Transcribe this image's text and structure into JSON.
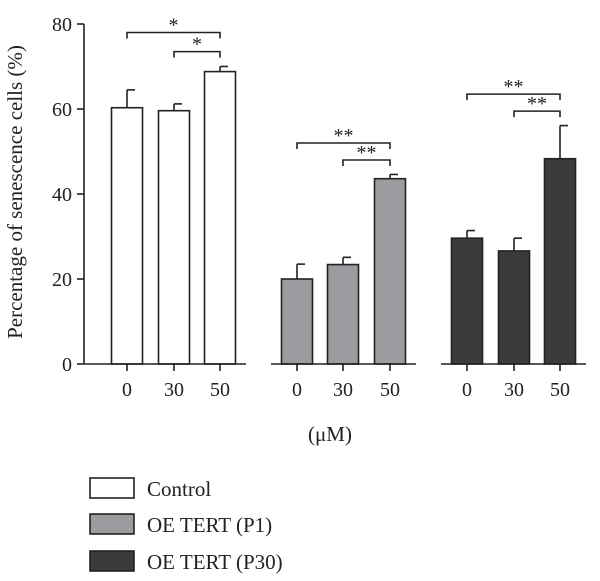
{
  "chart_data": {
    "type": "bar",
    "ylabel": "Percentage of senescence cells (%)",
    "xlabel": "(μM)",
    "ylim": [
      0,
      80
    ],
    "yticks": [
      "0",
      "20",
      "40",
      "60",
      "80"
    ],
    "categories": [
      "0",
      "30",
      "50"
    ],
    "series": [
      {
        "name": "Control",
        "color": "#ffffff",
        "values": [
          60.3,
          59.6,
          68.8
        ],
        "errors": [
          4.2,
          1.6,
          1.2
        ]
      },
      {
        "name": "OE TERT (P1)",
        "color": "#9a9ca0",
        "values": [
          20.0,
          23.4,
          43.6
        ],
        "errors": [
          3.5,
          1.7,
          1.0
        ]
      },
      {
        "name": "OE TERT (P30)",
        "color": "#3b3b3b",
        "values": [
          29.6,
          26.6,
          48.3
        ],
        "errors": [
          1.8,
          3.0,
          7.8
        ]
      }
    ],
    "significance": [
      {
        "group": 0,
        "from": 0,
        "to": 2,
        "label": "*",
        "y": 78
      },
      {
        "group": 0,
        "from": 1,
        "to": 2,
        "label": "*",
        "y": 73.5
      },
      {
        "group": 1,
        "from": 0,
        "to": 2,
        "label": "**",
        "y": 52
      },
      {
        "group": 1,
        "from": 1,
        "to": 2,
        "label": "**",
        "y": 48
      },
      {
        "group": 2,
        "from": 0,
        "to": 2,
        "label": "**",
        "y": 63.5
      },
      {
        "group": 2,
        "from": 1,
        "to": 2,
        "label": "**",
        "y": 59.5
      }
    ],
    "legend": [
      "Control",
      "OE TERT (P1)",
      "OE TERT (P30)"
    ]
  }
}
